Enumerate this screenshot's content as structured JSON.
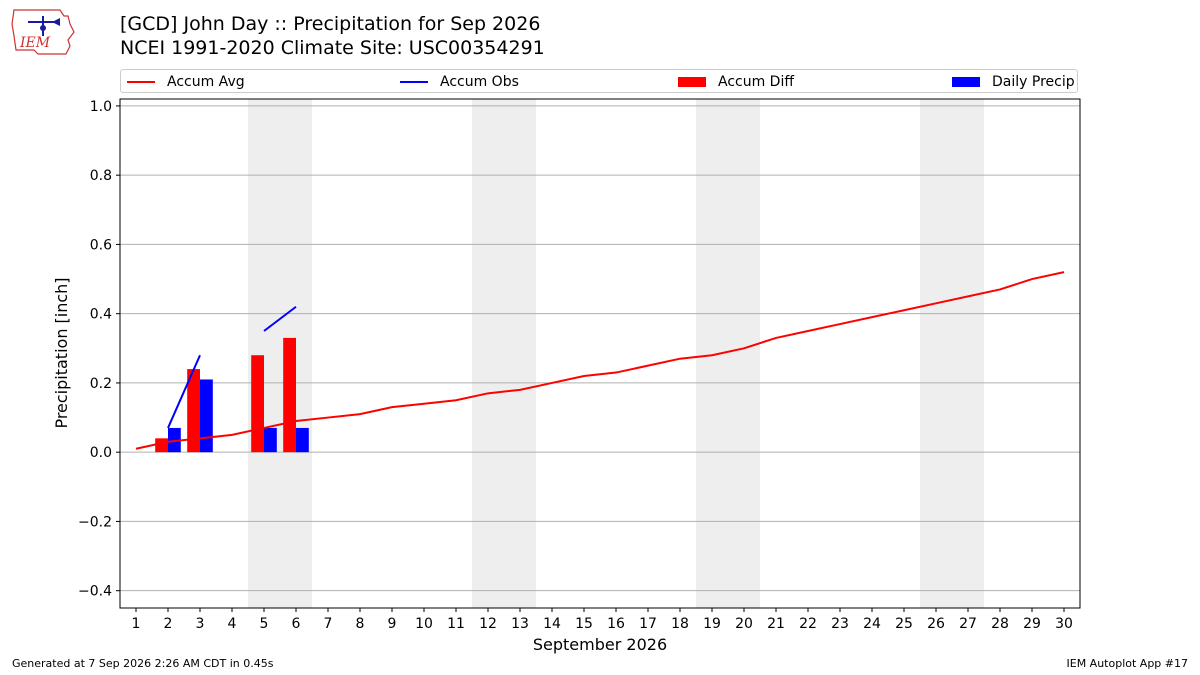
{
  "header": {
    "logo_text": "IEM",
    "title_line1": "[GCD] John Day :: Precipitation for Sep 2026",
    "title_line2": "NCEI 1991-2020 Climate Site: USC00354291"
  },
  "legend": {
    "items": [
      {
        "label": "Accum Avg",
        "kind": "line",
        "color": "#ff0000"
      },
      {
        "label": "Accum Obs",
        "kind": "line",
        "color": "#0000ff"
      },
      {
        "label": "Accum Diff",
        "kind": "box",
        "color": "#ff0000"
      },
      {
        "label": "Daily Precip",
        "kind": "box",
        "color": "#0000ff"
      }
    ]
  },
  "footer": {
    "left": "Generated at 7 Sep 2026 2:26 AM CDT in 0.45s",
    "right": "IEM Autoplot App #17"
  },
  "chart_data": {
    "type": "bar",
    "xlabel": "September 2026",
    "ylabel": "Precipitation [inch]",
    "xlim": [
      0.5,
      30.5
    ],
    "ylim": [
      -0.45,
      1.02
    ],
    "yticks": [
      -0.4,
      -0.2,
      0.0,
      0.2,
      0.4,
      0.6,
      0.8,
      1.0
    ],
    "ytick_labels": [
      "−0.4",
      "−0.2",
      "0.0",
      "0.2",
      "0.4",
      "0.6",
      "0.8",
      "1.0"
    ],
    "x": [
      1,
      2,
      3,
      4,
      5,
      6,
      7,
      8,
      9,
      10,
      11,
      12,
      13,
      14,
      15,
      16,
      17,
      18,
      19,
      20,
      21,
      22,
      23,
      24,
      25,
      26,
      27,
      28,
      29,
      30
    ],
    "weekend_days": [
      5,
      6,
      12,
      13,
      19,
      20,
      26,
      27
    ],
    "grid": "horizontal",
    "series": [
      {
        "name": "Accum Avg",
        "type": "line",
        "color": "#ff0000",
        "x": [
          1,
          2,
          3,
          4,
          5,
          6,
          7,
          8,
          9,
          10,
          11,
          12,
          13,
          14,
          15,
          16,
          17,
          18,
          19,
          20,
          21,
          22,
          23,
          24,
          25,
          26,
          27,
          28,
          29,
          30
        ],
        "values": [
          0.01,
          0.03,
          0.04,
          0.05,
          0.07,
          0.09,
          0.1,
          0.11,
          0.13,
          0.14,
          0.15,
          0.17,
          0.18,
          0.2,
          0.22,
          0.23,
          0.25,
          0.27,
          0.28,
          0.3,
          0.33,
          0.35,
          0.37,
          0.39,
          0.41,
          0.43,
          0.45,
          0.47,
          0.5,
          0.52
        ]
      },
      {
        "name": "Accum Obs",
        "type": "line",
        "color": "#0000ff",
        "segments": [
          {
            "x": [
              2,
              3
            ],
            "values": [
              0.07,
              0.28
            ]
          },
          {
            "x": [
              5,
              6
            ],
            "values": [
              0.35,
              0.42
            ]
          }
        ]
      },
      {
        "name": "Accum Diff",
        "type": "bar",
        "color": "#ff0000",
        "x": [
          2,
          3,
          5,
          6
        ],
        "values": [
          0.04,
          0.24,
          0.28,
          0.33
        ]
      },
      {
        "name": "Daily Precip",
        "type": "bar",
        "color": "#0000ff",
        "x": [
          2,
          3,
          5,
          6
        ],
        "values": [
          0.07,
          0.21,
          0.07,
          0.07
        ]
      }
    ]
  }
}
